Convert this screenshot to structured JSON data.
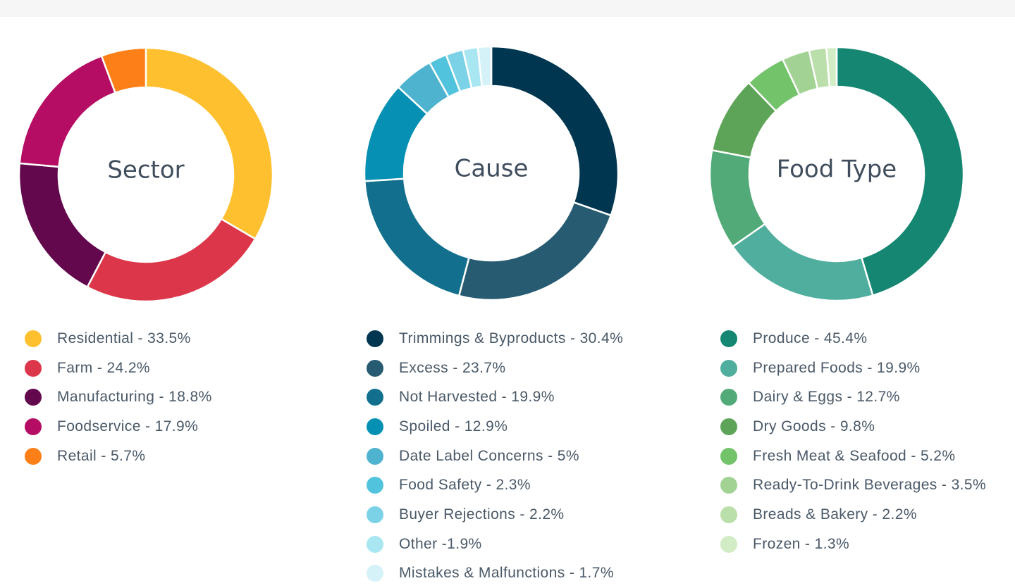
{
  "chart_data": [
    {
      "type": "pie",
      "donut": true,
      "center_label": "Sector",
      "slices": [
        {
          "label": "Residential",
          "value": 33.5,
          "display": "Residential - 33.5%",
          "color": "#fec02f"
        },
        {
          "label": "Farm",
          "value": 24.2,
          "display": "Farm - 24.2%",
          "color": "#db3649"
        },
        {
          "label": "Manufacturing",
          "value": 18.8,
          "display": "Manufacturing - 18.8%",
          "color": "#64084e"
        },
        {
          "label": "Foodservice",
          "value": 17.9,
          "display": "Foodservice - 17.9%",
          "color": "#b50d63"
        },
        {
          "label": "Retail",
          "value": 5.7,
          "display": "Retail - 5.7%",
          "color": "#fc7f17"
        }
      ]
    },
    {
      "type": "pie",
      "donut": true,
      "center_label": "Cause",
      "slices": [
        {
          "label": "Trimmings & Byproducts",
          "value": 30.4,
          "display": "Trimmings & Byproducts - 30.4%",
          "color": "#013650"
        },
        {
          "label": "Excess",
          "value": 23.7,
          "display": "Excess - 23.7%",
          "color": "#265b71"
        },
        {
          "label": "Not Harvested",
          "value": 19.9,
          "display": "Not Harvested - 19.9%",
          "color": "#12708e"
        },
        {
          "label": "Spoiled",
          "value": 12.9,
          "display": "Spoiled - 12.9%",
          "color": "#0590b4"
        },
        {
          "label": "Date Label Concerns",
          "value": 5,
          "display": "Date Label Concerns - 5%",
          "color": "#4db3cf"
        },
        {
          "label": "Food Safety",
          "value": 2.3,
          "display": "Food Safety - 2.3%",
          "color": "#52c3dc"
        },
        {
          "label": "Buyer Rejections",
          "value": 2.2,
          "display": "Buyer Rejections - 2.2%",
          "color": "#7bd2e6"
        },
        {
          "label": "Other",
          "value": 1.9,
          "display": "Other -1.9%",
          "color": "#a8e6f2"
        },
        {
          "label": "Mistakes & Malfunctions",
          "value": 1.7,
          "display": "Mistakes & Malfunctions - 1.7%",
          "color": "#d5f2f8"
        }
      ]
    },
    {
      "type": "pie",
      "donut": true,
      "center_label": "Food Type",
      "slices": [
        {
          "label": "Produce",
          "value": 45.4,
          "display": "Produce - 45.4%",
          "color": "#158671"
        },
        {
          "label": "Prepared Foods",
          "value": 19.9,
          "display": "Prepared Foods - 19.9%",
          "color": "#4fae9d"
        },
        {
          "label": "Dairy & Eggs",
          "value": 12.7,
          "display": "Dairy & Eggs - 12.7%",
          "color": "#52aa79"
        },
        {
          "label": "Dry Goods",
          "value": 9.8,
          "display": "Dry Goods - 9.8%",
          "color": "#5ea458"
        },
        {
          "label": "Fresh Meat & Seafood",
          "value": 5.2,
          "display": "Fresh Meat & Seafood - 5.2%",
          "color": "#72c36a"
        },
        {
          "label": "Ready-To-Drink Beverages",
          "value": 3.5,
          "display": "Ready-To-Drink Beverages - 3.5%",
          "color": "#a3d394"
        },
        {
          "label": "Breads & Bakery",
          "value": 2.2,
          "display": "Breads & Bakery - 2.2%",
          "color": "#bbdfaa"
        },
        {
          "label": "Frozen",
          "value": 1.3,
          "display": "Frozen - 1.3%",
          "color": "#d2ecc6"
        }
      ]
    }
  ]
}
